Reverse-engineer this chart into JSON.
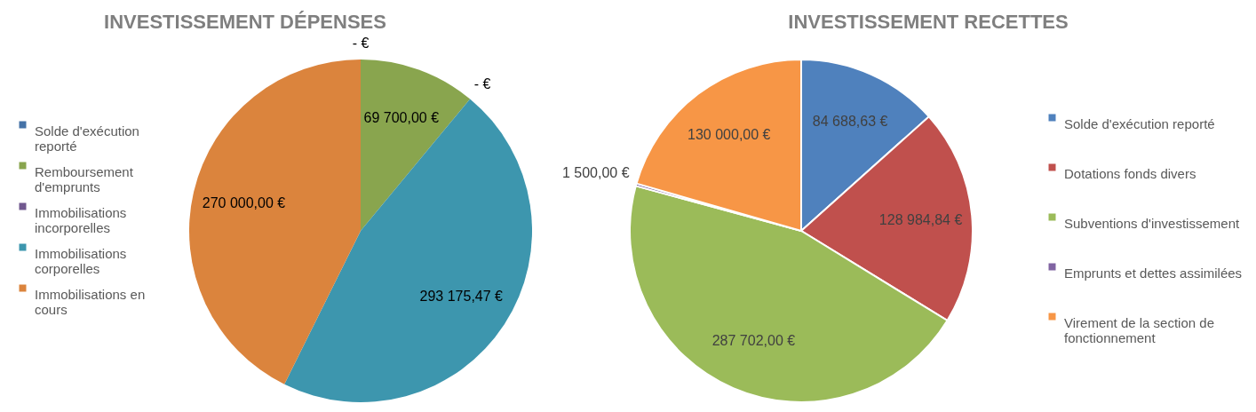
{
  "chart_data": [
    {
      "type": "pie",
      "title": "INVESTISSEMENT DÉPENSES",
      "categories": [
        "Solde d'exécution reporté",
        "Remboursement d'emprunts",
        "Immobilisations incorporelles",
        "Immobilisations corporelles",
        "Immobilisations en cours"
      ],
      "values": [
        0,
        69700,
        0,
        293175.47,
        270000
      ],
      "colors": [
        "#4572a7",
        "#89a54e",
        "#71588f",
        "#3d96ae",
        "#db843d"
      ],
      "value_labels": [
        "- €",
        "69 700,00 €",
        "- €",
        "293 175,47 €",
        "270 000,00 €"
      ],
      "legend": "left"
    },
    {
      "type": "pie",
      "title": "INVESTISSEMENT RECETTES",
      "categories": [
        "Solde d'exécution reporté",
        "Dotations fonds divers",
        "Subventions d'investissement",
        "Emprunts et dettes assimilées",
        "Virement de la section de fonctionnement"
      ],
      "values": [
        84688.63,
        128984.84,
        287702,
        1500,
        130000
      ],
      "colors": [
        "#4f81bd",
        "#c0504d",
        "#9bbb59",
        "#8064a2",
        "#f79646"
      ],
      "value_labels": [
        "84 688,63 €",
        "128 984,84 €",
        "287 702,00 €",
        "1 500,00 €",
        "130 000,00 €"
      ],
      "legend": "right"
    }
  ]
}
